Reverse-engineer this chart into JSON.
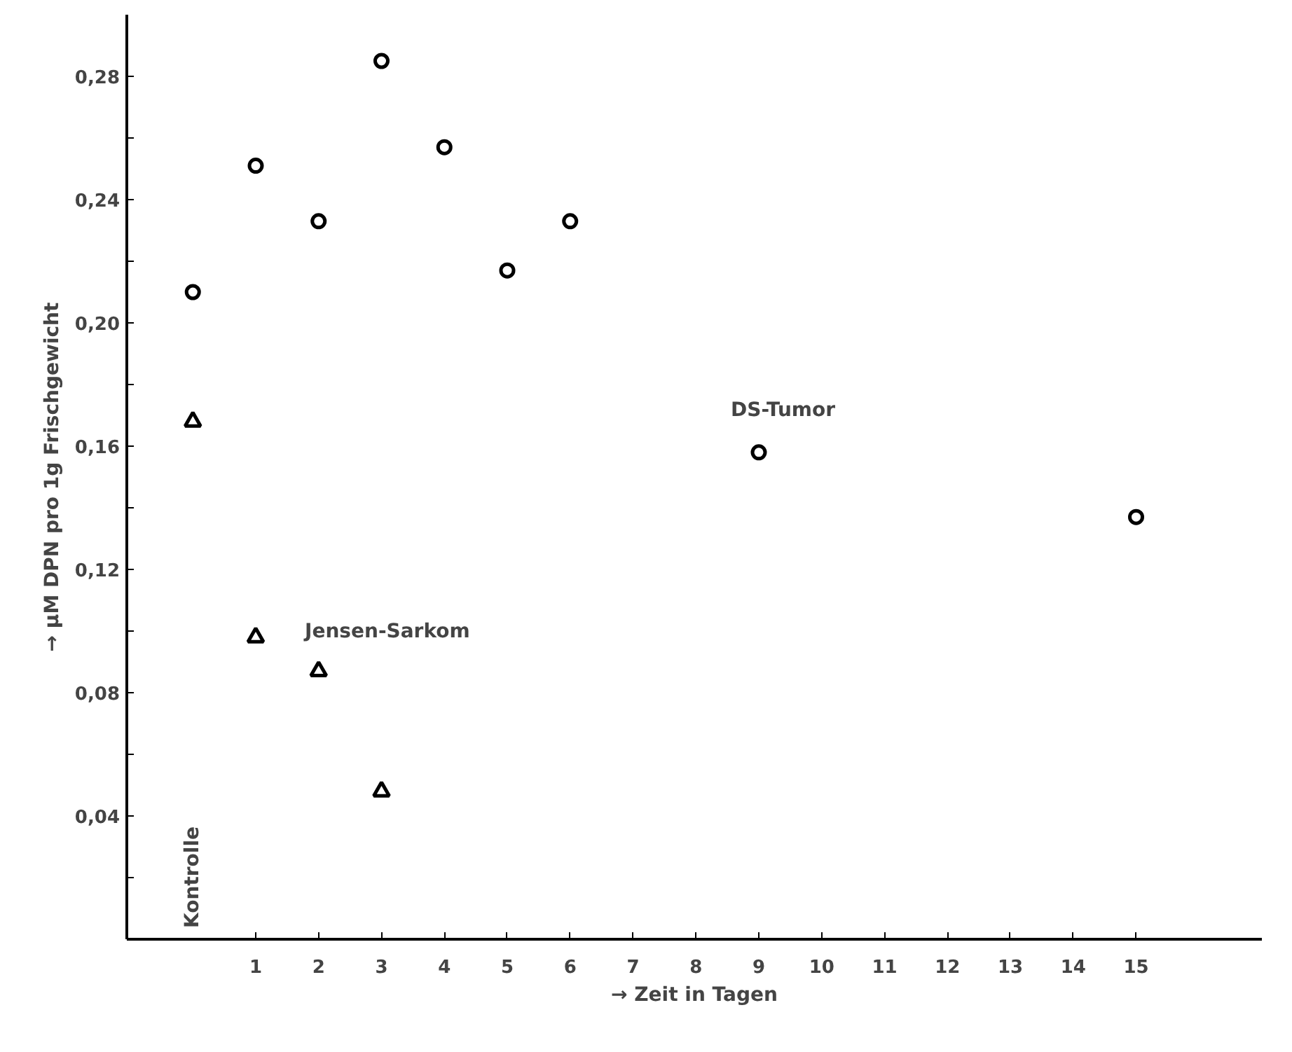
{
  "chart_data": {
    "type": "scatter",
    "xlabel": "→ Zeit in Tagen",
    "ylabel": "→ µM DPN pro 1g Frischgewicht",
    "series": [
      {
        "name": "DS-Tumor",
        "color": "#000000",
        "marker": "circle",
        "x": [
          0,
          1,
          2,
          3,
          4,
          5,
          6,
          9,
          15
        ],
        "values": [
          0.21,
          0.251,
          0.233,
          0.285,
          0.257,
          0.217,
          0.233,
          0.158,
          0.137
        ]
      },
      {
        "name": "Jensen-Sarkom",
        "color": "#000000",
        "marker": "triangle",
        "x": [
          0,
          1,
          2,
          3
        ],
        "values": [
          0.168,
          0.098,
          0.087,
          0.048
        ]
      }
    ],
    "xlim": [
      -1.05,
      17
    ],
    "ylim": [
      0,
      0.3
    ],
    "annotations": [
      "Kontrolle"
    ],
    "xticks": [
      1,
      2,
      3,
      4,
      5,
      6,
      7,
      8,
      9,
      10,
      11,
      12,
      13,
      14,
      15
    ],
    "yticks": [
      {
        "value": 0.02,
        "label": null
      },
      {
        "value": 0.04,
        "label": "0,04"
      },
      {
        "value": 0.06,
        "label": null
      },
      {
        "value": 0.08,
        "label": "0,08"
      },
      {
        "value": 0.1,
        "label": null
      },
      {
        "value": 0.12,
        "label": "0,12"
      },
      {
        "value": 0.14,
        "label": null
      },
      {
        "value": 0.16,
        "label": "0,16"
      },
      {
        "value": 0.18,
        "label": null
      },
      {
        "value": 0.2,
        "label": "0,20"
      },
      {
        "value": 0.22,
        "label": null
      },
      {
        "value": 0.24,
        "label": "0,24"
      },
      {
        "value": 0.26,
        "label": null
      },
      {
        "value": 0.28,
        "label": "0,28"
      }
    ],
    "grid": false,
    "legend": false
  }
}
